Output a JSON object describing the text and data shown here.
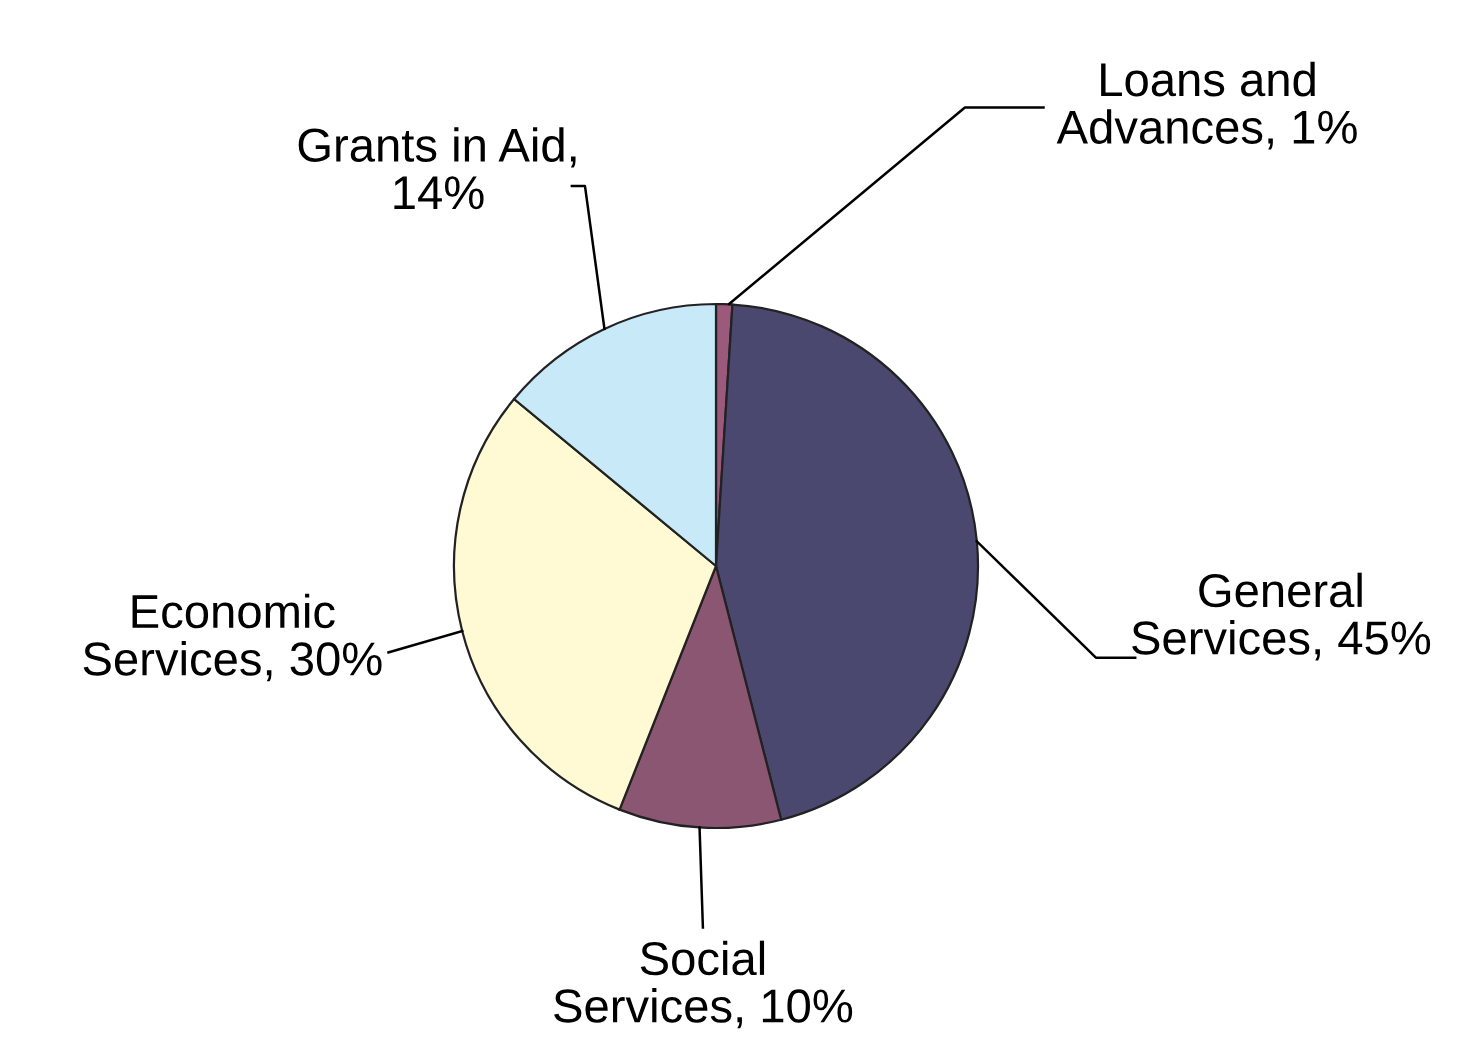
{
  "chart_data": {
    "type": "pie",
    "categories": [
      "Loans and\nAdvances, 1%",
      "General\nServices, 45%",
      "Social\nServices, 10%",
      "Economic\nServices, 30%",
      "Grants in Aid,\n14%"
    ],
    "values": [
      1,
      45,
      10,
      30,
      14
    ],
    "colors": [
      "#9b5a7c",
      "#4b4870",
      "#8b5672",
      "#fffad4",
      "#c8e9f8"
    ]
  }
}
